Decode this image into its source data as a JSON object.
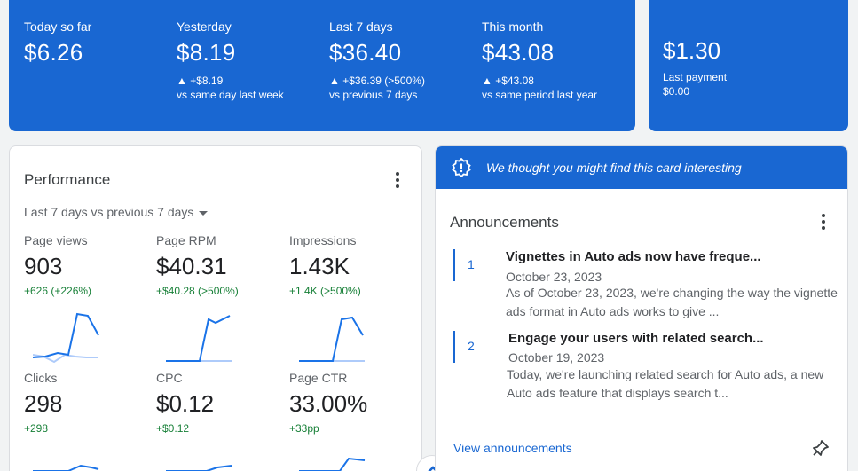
{
  "earnings": {
    "today": {
      "label": "Today so far",
      "value": "$6.26"
    },
    "yesterday": {
      "label": "Yesterday",
      "value": "$8.19",
      "delta": "▲ +$8.19",
      "compare": "vs same day last week"
    },
    "last7": {
      "label": "Last 7 days",
      "value": "$36.40",
      "delta": "▲ +$36.39 (>500%)",
      "compare": "vs previous 7 days"
    },
    "month": {
      "label": "This month",
      "value": "$43.08",
      "delta": "▲ +$43.08",
      "compare": "vs same period last year"
    }
  },
  "payment": {
    "balance": "$1.30",
    "label": "Last payment",
    "amount": "$0.00"
  },
  "performance": {
    "title": "Performance",
    "period": "Last 7 days vs previous 7 days",
    "metrics": [
      {
        "label": "Page views",
        "value": "903",
        "delta": "+626 (+226%)"
      },
      {
        "label": "Page RPM",
        "value": "$40.31",
        "delta": "+$40.28 (>500%)"
      },
      {
        "label": "Impressions",
        "value": "1.43K",
        "delta": "+1.4K (>500%)"
      },
      {
        "label": "Clicks",
        "value": "298",
        "delta": "+298"
      },
      {
        "label": "CPC",
        "value": "$0.12",
        "delta": "+$0.12"
      },
      {
        "label": "Page CTR",
        "value": "33.00%",
        "delta": "+33pp"
      }
    ]
  },
  "announcements": {
    "banner": "We thought you might find this card interesting",
    "title": "Announcements",
    "items": [
      {
        "num": "1",
        "title": "Vignettes in Auto ads now have freque...",
        "date": "October 23, 2023",
        "body": "As of October 23, 2023, we're changing the way the vignette ads format in Auto ads works to give ..."
      },
      {
        "num": "2",
        "title": "Engage your users with related search...",
        "date": "October 19, 2023",
        "body": "Today, we're launching related search for Auto ads, a new Auto ads feature that displays search t..."
      }
    ],
    "link": "View announcements"
  },
  "colors": {
    "accent": "#1967d2",
    "positive": "#188038",
    "spark_current": "#1a73e8",
    "spark_previous": "#aecbfa"
  },
  "icons": [
    "kebab-menu-icon",
    "caret-down-icon",
    "lightbulb-badge-icon",
    "pin-icon",
    "chevron-up-icon"
  ]
}
